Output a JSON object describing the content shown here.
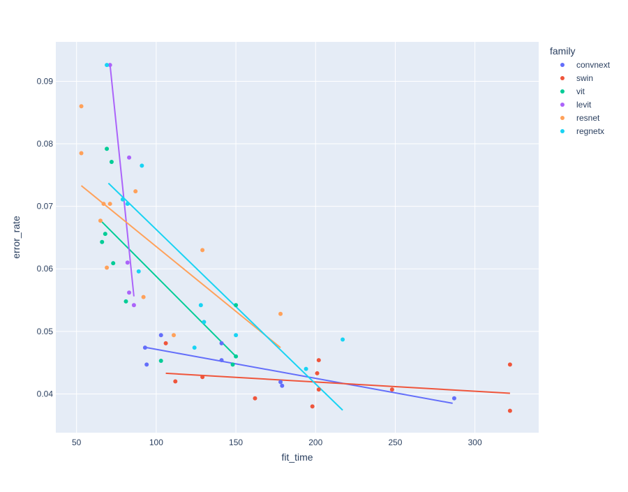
{
  "chart_data": {
    "type": "scatter",
    "xlabel": "fit_time",
    "ylabel": "error_rate",
    "xlim": [
      37,
      340
    ],
    "ylim": [
      0.0338,
      0.0963
    ],
    "x_ticks": [
      50,
      100,
      150,
      200,
      250,
      300
    ],
    "y_ticks": [
      0.04,
      0.05,
      0.06,
      0.07,
      0.08,
      0.09
    ],
    "grid": true,
    "legend_position": "top-right",
    "legend_title": "family",
    "background_color": "#e5ecf6",
    "series": [
      {
        "name": "convnext",
        "color": "#636efa",
        "points": [
          [
            93,
            0.0474
          ],
          [
            94,
            0.0447
          ],
          [
            103,
            0.0494
          ],
          [
            141,
            0.0481
          ],
          [
            141,
            0.0454
          ],
          [
            179,
            0.0413
          ],
          [
            178,
            0.0419
          ],
          [
            287,
            0.0393
          ]
        ],
        "trendline": [
          [
            92,
            0.0475
          ],
          [
            286,
            0.0385
          ]
        ]
      },
      {
        "name": "swin",
        "color": "#ef553b",
        "points": [
          [
            106,
            0.0481
          ],
          [
            112,
            0.042
          ],
          [
            129,
            0.0427
          ],
          [
            162,
            0.0393
          ],
          [
            198,
            0.038
          ],
          [
            201,
            0.0433
          ],
          [
            202,
            0.0454
          ],
          [
            202,
            0.0407
          ],
          [
            248,
            0.0407
          ],
          [
            322,
            0.0447
          ],
          [
            322,
            0.0373
          ]
        ],
        "trendline": [
          [
            106,
            0.0433
          ],
          [
            322,
            0.0401
          ]
        ]
      },
      {
        "name": "vit",
        "color": "#00cc96",
        "points": [
          [
            69,
            0.0792
          ],
          [
            72,
            0.0771
          ],
          [
            66,
            0.0643
          ],
          [
            68,
            0.0656
          ],
          [
            73,
            0.0609
          ],
          [
            81,
            0.0548
          ],
          [
            103,
            0.0453
          ],
          [
            148,
            0.0447
          ],
          [
            150,
            0.0542
          ],
          [
            150,
            0.046
          ]
        ],
        "trendline": [
          [
            66,
            0.0675
          ],
          [
            150,
            0.046
          ]
        ]
      },
      {
        "name": "levit",
        "color": "#ab63fa",
        "points": [
          [
            71,
            0.0926
          ],
          [
            83,
            0.0778
          ],
          [
            82,
            0.061
          ],
          [
            83,
            0.0562
          ],
          [
            86,
            0.0542
          ]
        ],
        "trendline": [
          [
            71,
            0.0927
          ],
          [
            86,
            0.0556
          ]
        ]
      },
      {
        "name": "resnet",
        "color": "#ffa15a",
        "points": [
          [
            53,
            0.086
          ],
          [
            53,
            0.0785
          ],
          [
            67,
            0.0704
          ],
          [
            71,
            0.0704
          ],
          [
            87,
            0.0724
          ],
          [
            65,
            0.0677
          ],
          [
            69,
            0.0602
          ],
          [
            92,
            0.0555
          ],
          [
            111,
            0.0494
          ],
          [
            129,
            0.063
          ],
          [
            178,
            0.0528
          ]
        ],
        "trendline": [
          [
            53,
            0.0733
          ],
          [
            178,
            0.0474
          ]
        ]
      },
      {
        "name": "regnetx",
        "color": "#19d3f3",
        "points": [
          [
            69,
            0.0926
          ],
          [
            91,
            0.0765
          ],
          [
            79,
            0.0711
          ],
          [
            82,
            0.0704
          ],
          [
            89,
            0.0596
          ],
          [
            124,
            0.0474
          ],
          [
            128,
            0.0542
          ],
          [
            130,
            0.0515
          ],
          [
            150,
            0.0494
          ],
          [
            194,
            0.044
          ],
          [
            217,
            0.0487
          ]
        ],
        "trendline": [
          [
            70,
            0.0737
          ],
          [
            217,
            0.0374
          ]
        ]
      }
    ]
  }
}
